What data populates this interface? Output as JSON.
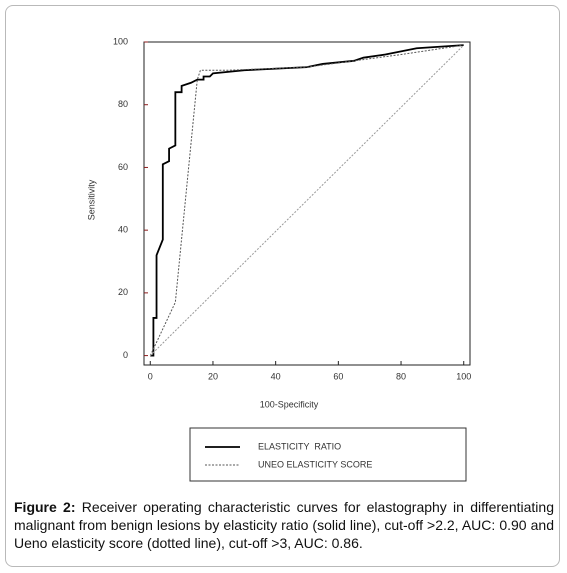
{
  "chart_data": {
    "type": "line",
    "xlabel": "100-Specificity",
    "ylabel": "Sensitivity",
    "xlim": [
      -2,
      102
    ],
    "ylim": [
      -3,
      100
    ],
    "xticks": [
      0,
      20,
      40,
      60,
      80,
      100
    ],
    "yticks": [
      0,
      20,
      40,
      60,
      80,
      100
    ],
    "series": [
      {
        "name": "ELASTICITY  RATIO",
        "color": "#000000",
        "style": "solid",
        "x": [
          0,
          1,
          1,
          2,
          2,
          4,
          4,
          6,
          6,
          8,
          8,
          10,
          10,
          13,
          15,
          17,
          17,
          19,
          20,
          30,
          50,
          55,
          65,
          68,
          75,
          85,
          100
        ],
        "values": [
          0,
          0,
          12,
          12,
          32,
          37,
          61,
          62,
          66,
          67,
          84,
          84,
          86,
          87,
          88,
          88,
          89,
          89,
          90,
          91,
          92,
          93,
          94,
          95,
          96,
          98,
          99
        ]
      },
      {
        "name": "UNEO ELASTICITY SCORE",
        "color": "#555555",
        "style": "dotted",
        "x": [
          0,
          8,
          15,
          16,
          25,
          50,
          65,
          80,
          100
        ],
        "values": [
          0,
          17,
          88,
          91,
          91,
          92,
          94,
          96,
          99
        ]
      },
      {
        "color": "#999999",
        "style": "dotted",
        "x": [
          0,
          100
        ],
        "values": [
          0,
          99
        ]
      }
    ]
  },
  "caption": {
    "label": "Figure 2:",
    "text": "Receiver operating characteristic curves for elastography in differentiating malignant from benign lesions by elasticity ratio (solid line), cut-off >2.2, AUC: 0.90 and Ueno elasticity score (dotted line), cut-off >3, AUC: 0.86."
  }
}
